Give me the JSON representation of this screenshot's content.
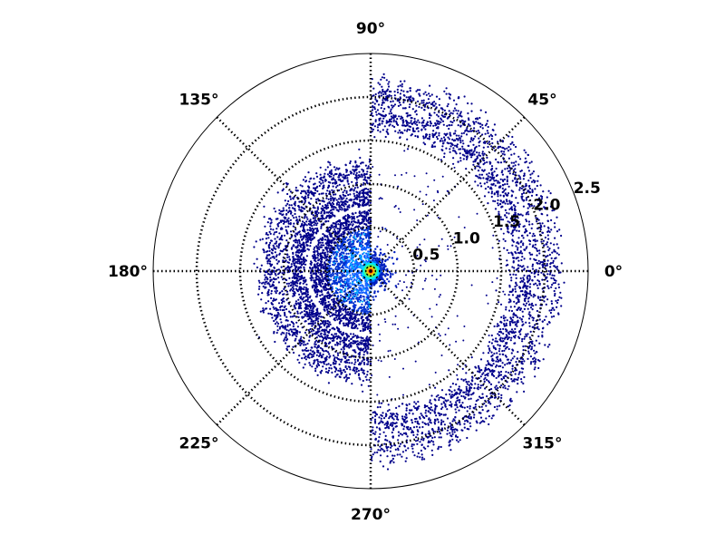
{
  "chart_data": {
    "type": "scatter",
    "projection": "polar",
    "title": "",
    "theta_unit": "degrees",
    "r_max": 2.5,
    "angular_ticks": [
      {
        "value": 0,
        "label": "0°"
      },
      {
        "value": 45,
        "label": "45°"
      },
      {
        "value": 90,
        "label": "90°"
      },
      {
        "value": 135,
        "label": "135°"
      },
      {
        "value": 180,
        "label": "180°"
      },
      {
        "value": 225,
        "label": "225°"
      },
      {
        "value": 270,
        "label": "270°"
      },
      {
        "value": 315,
        "label": "315°"
      }
    ],
    "radial_ticks": [
      {
        "value": 0.5,
        "label": "0.5"
      },
      {
        "value": 1.0,
        "label": "1.0"
      },
      {
        "value": 1.5,
        "label": "1.5"
      },
      {
        "value": 2.0,
        "label": "2.0"
      },
      {
        "value": 2.5,
        "label": "2.5"
      }
    ],
    "grid": true,
    "grid_style": "dotted",
    "colormap": "jet",
    "point_color": "#00008b",
    "approx_point_count": 8000,
    "point_density": [
      {
        "half": "right",
        "theta_range": [
          -90,
          90
        ],
        "r_range": [
          0.0,
          0.05
        ],
        "density": "very high (red/yellow core)"
      },
      {
        "half": "right",
        "theta_range": [
          -90,
          90
        ],
        "r_range": [
          0.05,
          0.3
        ],
        "density": "medium (cyan/light blue halo)"
      },
      {
        "half": "right",
        "theta_range": [
          -90,
          90
        ],
        "r_range": [
          1.6,
          2.25
        ],
        "density": "high (dense ring)"
      },
      {
        "half": "right",
        "theta_range": [
          -90,
          90
        ],
        "r_range": [
          0.3,
          1.6
        ],
        "density": "sparse scatter"
      },
      {
        "half": "left",
        "theta_range": [
          90,
          270
        ],
        "r_range": [
          0.0,
          0.7
        ],
        "density": "high (blue/cyan)"
      },
      {
        "half": "left",
        "theta_range": [
          90,
          270
        ],
        "r_range": [
          0.75,
          1.35
        ],
        "density": "high (ring)"
      },
      {
        "half": "left",
        "theta_range": [
          90,
          270
        ],
        "r_range": [
          0.7,
          0.75
        ],
        "density": "gap"
      }
    ]
  }
}
